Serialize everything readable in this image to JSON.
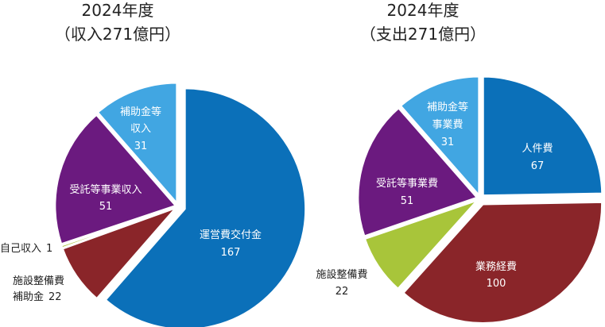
{
  "chart_data": [
    {
      "type": "pie",
      "title": "2024年度",
      "subtitle": "（収入271億円）",
      "slices": [
        {
          "label_lines": [
            "運営費交付金"
          ],
          "value": 167,
          "color": "#0b70b9"
        },
        {
          "label_lines": [
            "施設整備費",
            "補助金"
          ],
          "value": 22,
          "color": "#8a2529"
        },
        {
          "label_lines": [
            "自己収入"
          ],
          "value": 1,
          "color": "#a8c53a"
        },
        {
          "label_lines": [
            "受託等事業収入"
          ],
          "value": 51,
          "color": "#6b1a7f"
        },
        {
          "label_lines": [
            "補助金等",
            "収入"
          ],
          "value": 31,
          "color": "#41a6e2"
        }
      ]
    },
    {
      "type": "pie",
      "title": "2024年度",
      "subtitle": "（支出271億円）",
      "slices": [
        {
          "label_lines": [
            "人件費"
          ],
          "value": 67,
          "color": "#0b70b9"
        },
        {
          "label_lines": [
            "業務経費"
          ],
          "value": 100,
          "color": "#8a2529"
        },
        {
          "label_lines": [
            "施設整備費"
          ],
          "value": 22,
          "color": "#a8c53a"
        },
        {
          "label_lines": [
            "受託等事業費"
          ],
          "value": 51,
          "color": "#6b1a7f"
        },
        {
          "label_lines": [
            "補助金等",
            "事業費"
          ],
          "value": 31,
          "color": "#41a6e2"
        }
      ]
    }
  ]
}
